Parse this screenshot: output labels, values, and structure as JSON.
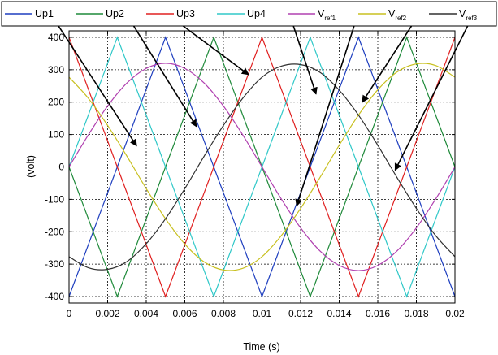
{
  "chart_data": {
    "type": "line",
    "title": "",
    "xlabel": "Time (s)",
    "ylabel": "(volt)",
    "xlim": [
      0,
      0.02
    ],
    "ylim": [
      -420,
      420
    ],
    "x_ticks": [
      0,
      0.002,
      0.004,
      0.006,
      0.008,
      0.01,
      0.012,
      0.014,
      0.016,
      0.018,
      0.02
    ],
    "x_tick_labels": [
      "0",
      "0.002",
      "0.004",
      "0.006",
      "0.008",
      "0.01",
      "0.012",
      "0.014",
      "0.016",
      "0.018",
      "0.02"
    ],
    "y_ticks": [
      -400,
      -300,
      -200,
      -100,
      0,
      100,
      200,
      300,
      400
    ],
    "y_tick_labels": [
      "-400",
      "-300",
      "-200",
      "-100",
      "0",
      "100",
      "200",
      "300",
      "400"
    ],
    "grid": true,
    "legend_position": "top",
    "series": [
      {
        "name": "Up1",
        "color": "#1f3fbf",
        "x": [
          0,
          0.0025,
          0.005,
          0.0075,
          0.01,
          0.0125,
          0.015,
          0.0175,
          0.02
        ],
        "y": [
          -400,
          0,
          400,
          0,
          -400,
          0,
          400,
          0,
          -400
        ]
      },
      {
        "name": "Up2",
        "color": "#1f8a3a",
        "x": [
          0,
          0.0025,
          0.005,
          0.0075,
          0.01,
          0.0125,
          0.015,
          0.0175,
          0.02
        ],
        "y": [
          0,
          -400,
          0,
          400,
          0,
          -400,
          0,
          400,
          0
        ]
      },
      {
        "name": "Up3",
        "color": "#e02020",
        "x": [
          0,
          0.0025,
          0.005,
          0.0075,
          0.01,
          0.0125,
          0.015,
          0.0175,
          0.02
        ],
        "y": [
          400,
          0,
          -400,
          0,
          400,
          0,
          -400,
          0,
          400
        ]
      },
      {
        "name": "Up4",
        "color": "#30c8c8",
        "x": [
          0,
          0.0025,
          0.005,
          0.0075,
          0.01,
          0.0125,
          0.015,
          0.0175,
          0.02
        ],
        "y": [
          0,
          400,
          0,
          -400,
          0,
          400,
          0,
          -400,
          0
        ]
      },
      {
        "name": "V",
        "subscript": "ref1",
        "color": "#b040b0",
        "x": [
          0,
          0.001,
          0.002,
          0.003,
          0.004,
          0.005,
          0.006,
          0.007,
          0.008,
          0.009,
          0.01,
          0.011,
          0.012,
          0.013,
          0.014,
          0.015,
          0.016,
          0.017,
          0.018,
          0.019,
          0.02
        ],
        "y": [
          0,
          99,
          188,
          259,
          304,
          320,
          304,
          259,
          188,
          99,
          0,
          -99,
          -188,
          -259,
          -304,
          -320,
          -304,
          -259,
          -188,
          -99,
          0
        ]
      },
      {
        "name": "V",
        "subscript": "ref2",
        "color": "#c8c020",
        "x": [
          0,
          0.001,
          0.002,
          0.003,
          0.004,
          0.005,
          0.006,
          0.007,
          0.008,
          0.009,
          0.01,
          0.011,
          0.012,
          0.013,
          0.014,
          0.015,
          0.016,
          0.017,
          0.018,
          0.019,
          0.02
        ],
        "y": [
          277,
          212,
          128,
          33,
          -67,
          -160,
          -238,
          -293,
          -318,
          -313,
          -277,
          -212,
          -128,
          -33,
          67,
          160,
          238,
          293,
          318,
          313,
          277
        ]
      },
      {
        "name": "V",
        "subscript": "ref3",
        "color": "#303030",
        "x": [
          0,
          0.001,
          0.002,
          0.003,
          0.004,
          0.005,
          0.006,
          0.007,
          0.008,
          0.009,
          0.01,
          0.011,
          0.012,
          0.013,
          0.014,
          0.015,
          0.016,
          0.017,
          0.018,
          0.019,
          0.02
        ],
        "y": [
          -277,
          -311,
          -316,
          -292,
          -237,
          -160,
          -67,
          33,
          128,
          212,
          277,
          311,
          316,
          292,
          237,
          160,
          67,
          -33,
          -128,
          -212,
          -277
        ]
      }
    ],
    "annotations": [
      {
        "from": [
          -0.0006,
          440
        ],
        "to": [
          0.0035,
          65
        ]
      },
      {
        "from": [
          0.0033,
          440
        ],
        "to": [
          0.0066,
          125
        ]
      },
      {
        "from": [
          0.0058,
          440
        ],
        "to": [
          0.0093,
          285
        ]
      },
      {
        "from": [
          0.0116,
          440
        ],
        "to": [
          0.0128,
          225
        ]
      },
      {
        "from": [
          0.0148,
          440
        ],
        "to": [
          0.0118,
          -120
        ]
      },
      {
        "from": [
          0.0178,
          440
        ],
        "to": [
          0.0152,
          200
        ]
      },
      {
        "from": [
          0.0207,
          440
        ],
        "to": [
          0.0169,
          -10
        ]
      }
    ]
  }
}
